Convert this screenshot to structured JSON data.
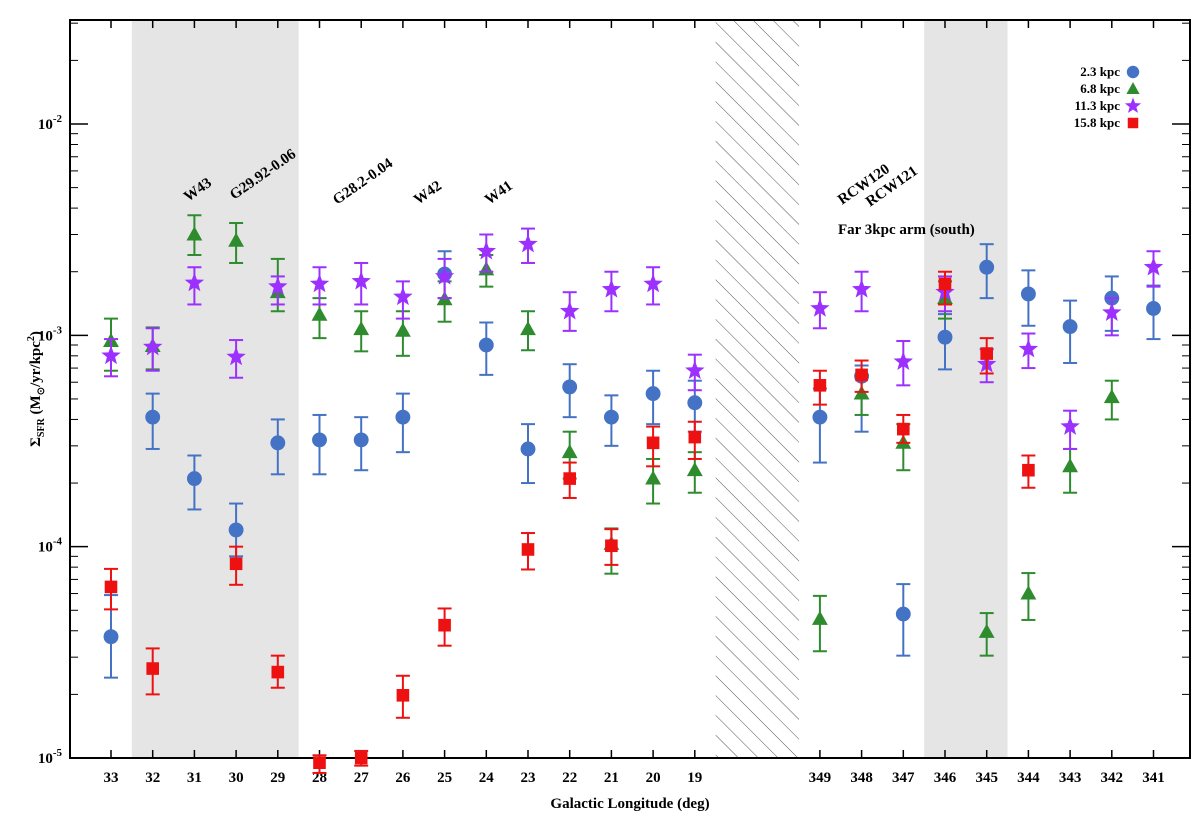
{
  "chart_data": {
    "type": "scatter",
    "title": "",
    "xlabel": "Galactic Longitude  (deg)",
    "ylabel_main": "Σ",
    "ylabel_sub": "SFR",
    "ylabel_rest": "  (M",
    "ylabel_sun_sub": "⊙",
    "ylabel_rest2": "/yr/kpc",
    "ylabel_sup": "2",
    "ylabel_end": ")",
    "y_scale": "log",
    "ylim": [
      1e-05,
      0.03
    ],
    "x_categories": [
      "33",
      "32",
      "31",
      "30",
      "29",
      "28",
      "27",
      "26",
      "25",
      "24",
      "23",
      "22",
      "21",
      "20",
      "19",
      "",
      "",
      "349",
      "348",
      "347",
      "346",
      "345",
      "344",
      "343",
      "342",
      "341"
    ],
    "y_ticks": [
      {
        "value": 1e-05,
        "base": "10",
        "exp": "-5"
      },
      {
        "value": 0.0001,
        "base": "10",
        "exp": "-4"
      },
      {
        "value": 0.001,
        "base": "10",
        "exp": "-3"
      },
      {
        "value": 0.01,
        "base": "10",
        "exp": "-2"
      }
    ],
    "shaded_regions": [
      {
        "from": "32",
        "to": "29",
        "kind": "grey"
      },
      {
        "from": "346",
        "to": "345",
        "kind": "grey"
      },
      {
        "gap_after": "19",
        "gap_before": "349",
        "kind": "hatched"
      }
    ],
    "annotations": [
      "W43",
      "G29.92-0.06",
      "G28.2-0.04",
      "W42",
      "W41",
      "RCW120",
      "RCW121",
      "Far 3kpc arm (south)"
    ],
    "legend_position": "top-right",
    "series": [
      {
        "name": "2.3 kpc",
        "color": "#4472c4",
        "marker": "circle",
        "points": [
          {
            "x": "33",
            "y": 3.75e-05,
            "lo": 2.4e-05,
            "hi": 5.9e-05
          },
          {
            "x": "32",
            "y": 0.00041,
            "lo": 0.00029,
            "hi": 0.00053
          },
          {
            "x": "31",
            "y": 0.00021,
            "lo": 0.00015,
            "hi": 0.00027
          },
          {
            "x": "30",
            "y": 0.00012,
            "lo": 9e-05,
            "hi": 0.00016
          },
          {
            "x": "29",
            "y": 0.00031,
            "lo": 0.00022,
            "hi": 0.0004
          },
          {
            "x": "28",
            "y": 0.00032,
            "lo": 0.00022,
            "hi": 0.00042
          },
          {
            "x": "27",
            "y": 0.00032,
            "lo": 0.00023,
            "hi": 0.00041
          },
          {
            "x": "26",
            "y": 0.00041,
            "lo": 0.00028,
            "hi": 0.00053
          },
          {
            "x": "25",
            "y": 0.00195,
            "lo": 0.0015,
            "hi": 0.0025
          },
          {
            "x": "24",
            "y": 0.0009,
            "lo": 0.00065,
            "hi": 0.00115
          },
          {
            "x": "23",
            "y": 0.00029,
            "lo": 0.0002,
            "hi": 0.00038
          },
          {
            "x": "22",
            "y": 0.00057,
            "lo": 0.00041,
            "hi": 0.00073
          },
          {
            "x": "21",
            "y": 0.00041,
            "lo": 0.0003,
            "hi": 0.00052
          },
          {
            "x": "20",
            "y": 0.00053,
            "lo": 0.00038,
            "hi": 0.00068
          },
          {
            "x": "19",
            "y": 0.00048,
            "lo": 0.00035,
            "hi": 0.00061
          },
          {
            "x": "349",
            "y": 0.00041,
            "lo": 0.00025,
            "hi": 0.00056
          },
          {
            "x": "348",
            "y": 0.00064,
            "lo": 0.00035,
            "hi": 0.00072
          },
          {
            "x": "347",
            "y": 4.8e-05,
            "lo": 3.05e-05,
            "hi": 6.65e-05
          },
          {
            "x": "346",
            "y": 0.00098,
            "lo": 0.00069,
            "hi": 0.00126
          },
          {
            "x": "345",
            "y": 0.0021,
            "lo": 0.0015,
            "hi": 0.0027
          },
          {
            "x": "344",
            "y": 0.00157,
            "lo": 0.00111,
            "hi": 0.00203
          },
          {
            "x": "343",
            "y": 0.0011,
            "lo": 0.00074,
            "hi": 0.00146
          },
          {
            "x": "342",
            "y": 0.0015,
            "lo": 0.00105,
            "hi": 0.0019
          },
          {
            "x": "341",
            "y": 0.00134,
            "lo": 0.00096,
            "hi": 0.00172
          }
        ]
      },
      {
        "name": "6.8 kpc",
        "color": "#2e8b2e",
        "marker": "triangle",
        "points": [
          {
            "x": "33",
            "y": 0.00094,
            "lo": 0.00068,
            "hi": 0.0012
          },
          {
            "x": "32",
            "y": 0.00089,
            "lo": 0.00069,
            "hi": 0.00109
          },
          {
            "x": "31",
            "y": 0.003,
            "lo": 0.0024,
            "hi": 0.0037
          },
          {
            "x": "30",
            "y": 0.0028,
            "lo": 0.0022,
            "hi": 0.0034
          },
          {
            "x": "29",
            "y": 0.0016,
            "lo": 0.0013,
            "hi": 0.0023
          },
          {
            "x": "28",
            "y": 0.00125,
            "lo": 0.00097,
            "hi": 0.0015
          },
          {
            "x": "27",
            "y": 0.00107,
            "lo": 0.00084,
            "hi": 0.0013
          },
          {
            "x": "26",
            "y": 0.00105,
            "lo": 0.0008,
            "hi": 0.0013
          },
          {
            "x": "25",
            "y": 0.00148,
            "lo": 0.00116,
            "hi": 0.0018
          },
          {
            "x": "24",
            "y": 0.00205,
            "lo": 0.0017,
            "hi": 0.0024
          },
          {
            "x": "23",
            "y": 0.00107,
            "lo": 0.00085,
            "hi": 0.0013
          },
          {
            "x": "22",
            "y": 0.00028,
            "lo": 0.00021,
            "hi": 0.00035
          },
          {
            "x": "21",
            "y": 0.000103,
            "lo": 7.45e-05,
            "hi": 0.000122
          },
          {
            "x": "20",
            "y": 0.00021,
            "lo": 0.00016,
            "hi": 0.00026
          },
          {
            "x": "19",
            "y": 0.00023,
            "lo": 0.00018,
            "hi": 0.00028
          },
          {
            "x": "349",
            "y": 4.55e-05,
            "lo": 3.2e-05,
            "hi": 5.85e-05
          },
          {
            "x": "348",
            "y": 0.00053,
            "lo": 0.00042,
            "hi": 0.00065
          },
          {
            "x": "347",
            "y": 0.00031,
            "lo": 0.00023,
            "hi": 0.00038
          },
          {
            "x": "346",
            "y": 0.0015,
            "lo": 0.0012,
            "hi": 0.0018
          },
          {
            "x": "345",
            "y": 3.95e-05,
            "lo": 3.05e-05,
            "hi": 4.85e-05
          },
          {
            "x": "344",
            "y": 6e-05,
            "lo": 4.5e-05,
            "hi": 7.5e-05
          },
          {
            "x": "343",
            "y": 0.00024,
            "lo": 0.00018,
            "hi": 0.00029
          },
          {
            "x": "342",
            "y": 0.00051,
            "lo": 0.0004,
            "hi": 0.00061
          }
        ]
      },
      {
        "name": "11.3 kpc",
        "color": "#9b30ff",
        "marker": "star",
        "points": [
          {
            "x": "33",
            "y": 0.0008,
            "lo": 0.00064,
            "hi": 0.00096
          },
          {
            "x": "32",
            "y": 0.00088,
            "lo": 0.00068,
            "hi": 0.00108
          },
          {
            "x": "31",
            "y": 0.00177,
            "lo": 0.0014,
            "hi": 0.0021
          },
          {
            "x": "30",
            "y": 0.00079,
            "lo": 0.00063,
            "hi": 0.00095
          },
          {
            "x": "29",
            "y": 0.0017,
            "lo": 0.0014,
            "hi": 0.0019
          },
          {
            "x": "28",
            "y": 0.00175,
            "lo": 0.0014,
            "hi": 0.0021
          },
          {
            "x": "27",
            "y": 0.0018,
            "lo": 0.0014,
            "hi": 0.0022
          },
          {
            "x": "26",
            "y": 0.00152,
            "lo": 0.0012,
            "hi": 0.0018
          },
          {
            "x": "25",
            "y": 0.0019,
            "lo": 0.0015,
            "hi": 0.0023
          },
          {
            "x": "24",
            "y": 0.0025,
            "lo": 0.002,
            "hi": 0.003
          },
          {
            "x": "23",
            "y": 0.0027,
            "lo": 0.0022,
            "hi": 0.0032
          },
          {
            "x": "22",
            "y": 0.0013,
            "lo": 0.00105,
            "hi": 0.0016
          },
          {
            "x": "21",
            "y": 0.00165,
            "lo": 0.0013,
            "hi": 0.002
          },
          {
            "x": "20",
            "y": 0.00175,
            "lo": 0.0014,
            "hi": 0.0021
          },
          {
            "x": "19",
            "y": 0.00068,
            "lo": 0.00055,
            "hi": 0.00081
          },
          {
            "x": "349",
            "y": 0.00134,
            "lo": 0.00108,
            "hi": 0.0016
          },
          {
            "x": "348",
            "y": 0.00165,
            "lo": 0.0013,
            "hi": 0.002
          },
          {
            "x": "347",
            "y": 0.00075,
            "lo": 0.00058,
            "hi": 0.00094
          },
          {
            "x": "346",
            "y": 0.0016,
            "lo": 0.0013,
            "hi": 0.0019
          },
          {
            "x": "345",
            "y": 0.00073,
            "lo": 0.0006,
            "hi": 0.00086
          },
          {
            "x": "344",
            "y": 0.00086,
            "lo": 0.0007,
            "hi": 0.00102
          },
          {
            "x": "343",
            "y": 0.00037,
            "lo": 0.00029,
            "hi": 0.00044
          },
          {
            "x": "342",
            "y": 0.00128,
            "lo": 0.001,
            "hi": 0.0015
          },
          {
            "x": "341",
            "y": 0.0021,
            "lo": 0.0017,
            "hi": 0.0025
          }
        ]
      },
      {
        "name": "15.8 kpc",
        "color": "#ee1111",
        "marker": "square",
        "points": [
          {
            "x": "33",
            "y": 6.45e-05,
            "lo": 5.05e-05,
            "hi": 7.85e-05
          },
          {
            "x": "32",
            "y": 2.65e-05,
            "lo": 2e-05,
            "hi": 3.3e-05
          },
          {
            "x": "30",
            "y": 8.3e-05,
            "lo": 6.6e-05,
            "hi": 0.0001
          },
          {
            "x": "29",
            "y": 2.55e-05,
            "lo": 2.15e-05,
            "hi": 3.05e-05
          },
          {
            "x": "28",
            "y": 9.5e-06,
            "lo": 8.5e-06,
            "hi": 1.03e-05
          },
          {
            "x": "27",
            "y": 1e-05,
            "lo": 9.2e-06,
            "hi": 1.08e-05
          },
          {
            "x": "26",
            "y": 1.98e-05,
            "lo": 1.55e-05,
            "hi": 2.45e-05
          },
          {
            "x": "25",
            "y": 4.25e-05,
            "lo": 3.4e-05,
            "hi": 5.1e-05
          },
          {
            "x": "23",
            "y": 9.7e-05,
            "lo": 7.8e-05,
            "hi": 0.000116
          },
          {
            "x": "22",
            "y": 0.00021,
            "lo": 0.00017,
            "hi": 0.00025
          },
          {
            "x": "21",
            "y": 0.000101,
            "lo": 8.2e-05,
            "hi": 0.000121
          },
          {
            "x": "20",
            "y": 0.00031,
            "lo": 0.00024,
            "hi": 0.00037
          },
          {
            "x": "19",
            "y": 0.00033,
            "lo": 0.00026,
            "hi": 0.00039
          },
          {
            "x": "349",
            "y": 0.00058,
            "lo": 0.00047,
            "hi": 0.00068
          },
          {
            "x": "348",
            "y": 0.00065,
            "lo": 0.00054,
            "hi": 0.00076
          },
          {
            "x": "347",
            "y": 0.00036,
            "lo": 0.00031,
            "hi": 0.00042
          },
          {
            "x": "346",
            "y": 0.00175,
            "lo": 0.0014,
            "hi": 0.002
          },
          {
            "x": "345",
            "y": 0.00082,
            "lo": 0.00066,
            "hi": 0.00097
          },
          {
            "x": "344",
            "y": 0.00023,
            "lo": 0.00019,
            "hi": 0.00027
          }
        ]
      }
    ]
  }
}
